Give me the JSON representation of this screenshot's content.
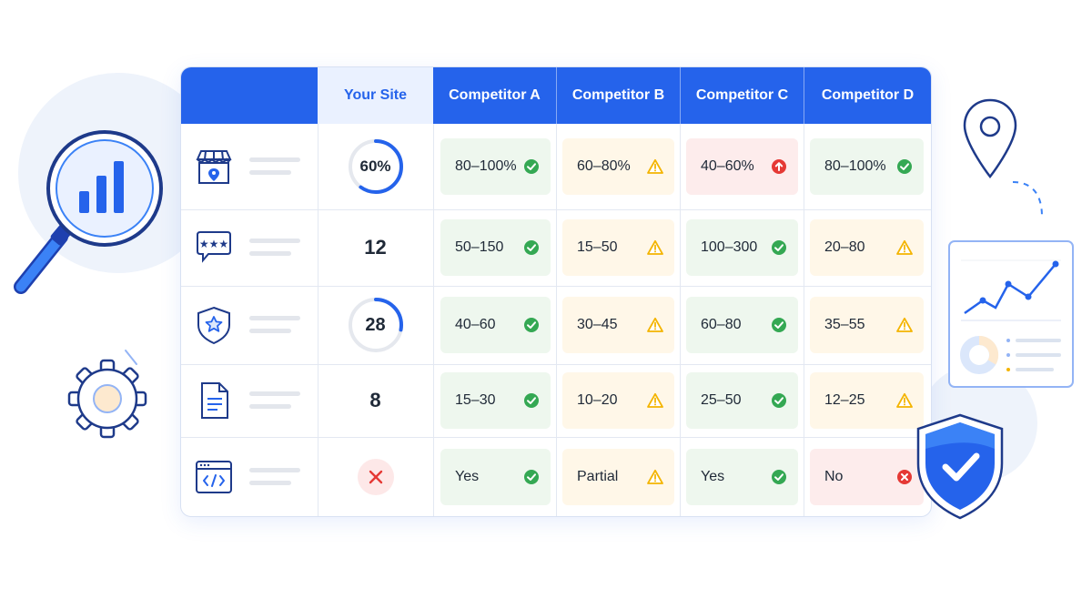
{
  "table": {
    "headers": [
      "Your Site",
      "Competitor A",
      "Competitor B",
      "Competitor C",
      "Competitor D"
    ],
    "rows": [
      {
        "icon": "storefront-location-icon",
        "your_site": {
          "kind": "ring",
          "text": "60%",
          "progress": 0.6
        },
        "cells": [
          {
            "text": "80–100%",
            "status": "check"
          },
          {
            "text": "60–80%",
            "status": "warning"
          },
          {
            "text": "40–60%",
            "status": "arrow-up"
          },
          {
            "text": "80–100%",
            "status": "check"
          }
        ]
      },
      {
        "icon": "rating-stars-chat-icon",
        "your_site": {
          "kind": "number",
          "text": "12"
        },
        "cells": [
          {
            "text": "50–150",
            "status": "check"
          },
          {
            "text": "15–50",
            "status": "warning"
          },
          {
            "text": "100–300",
            "status": "check"
          },
          {
            "text": "20–80",
            "status": "warning"
          }
        ]
      },
      {
        "icon": "shield-star-icon",
        "your_site": {
          "kind": "ring",
          "text": "28",
          "progress": 0.28
        },
        "cells": [
          {
            "text": "40–60",
            "status": "check"
          },
          {
            "text": "30–45",
            "status": "warning"
          },
          {
            "text": "60–80",
            "status": "check"
          },
          {
            "text": "35–55",
            "status": "warning"
          }
        ]
      },
      {
        "icon": "document-icon",
        "your_site": {
          "kind": "number",
          "text": "8"
        },
        "cells": [
          {
            "text": "15–30",
            "status": "check"
          },
          {
            "text": "10–20",
            "status": "warning"
          },
          {
            "text": "25–50",
            "status": "check"
          },
          {
            "text": "12–25",
            "status": "warning"
          }
        ]
      },
      {
        "icon": "code-window-icon",
        "your_site": {
          "kind": "cross"
        },
        "cells": [
          {
            "text": "Yes",
            "status": "check"
          },
          {
            "text": "Partial",
            "status": "warning"
          },
          {
            "text": "Yes",
            "status": "check"
          },
          {
            "text": "No",
            "status": "cross"
          }
        ]
      }
    ]
  },
  "colors": {
    "accent": "#2563eb",
    "check": "#34a853",
    "warning": "#f4b400",
    "error": "#e53935"
  },
  "decorations": [
    "magnifier-chart-icon",
    "gear-icon",
    "location-pin-icon",
    "analytics-panel-icon",
    "shield-check-icon"
  ]
}
